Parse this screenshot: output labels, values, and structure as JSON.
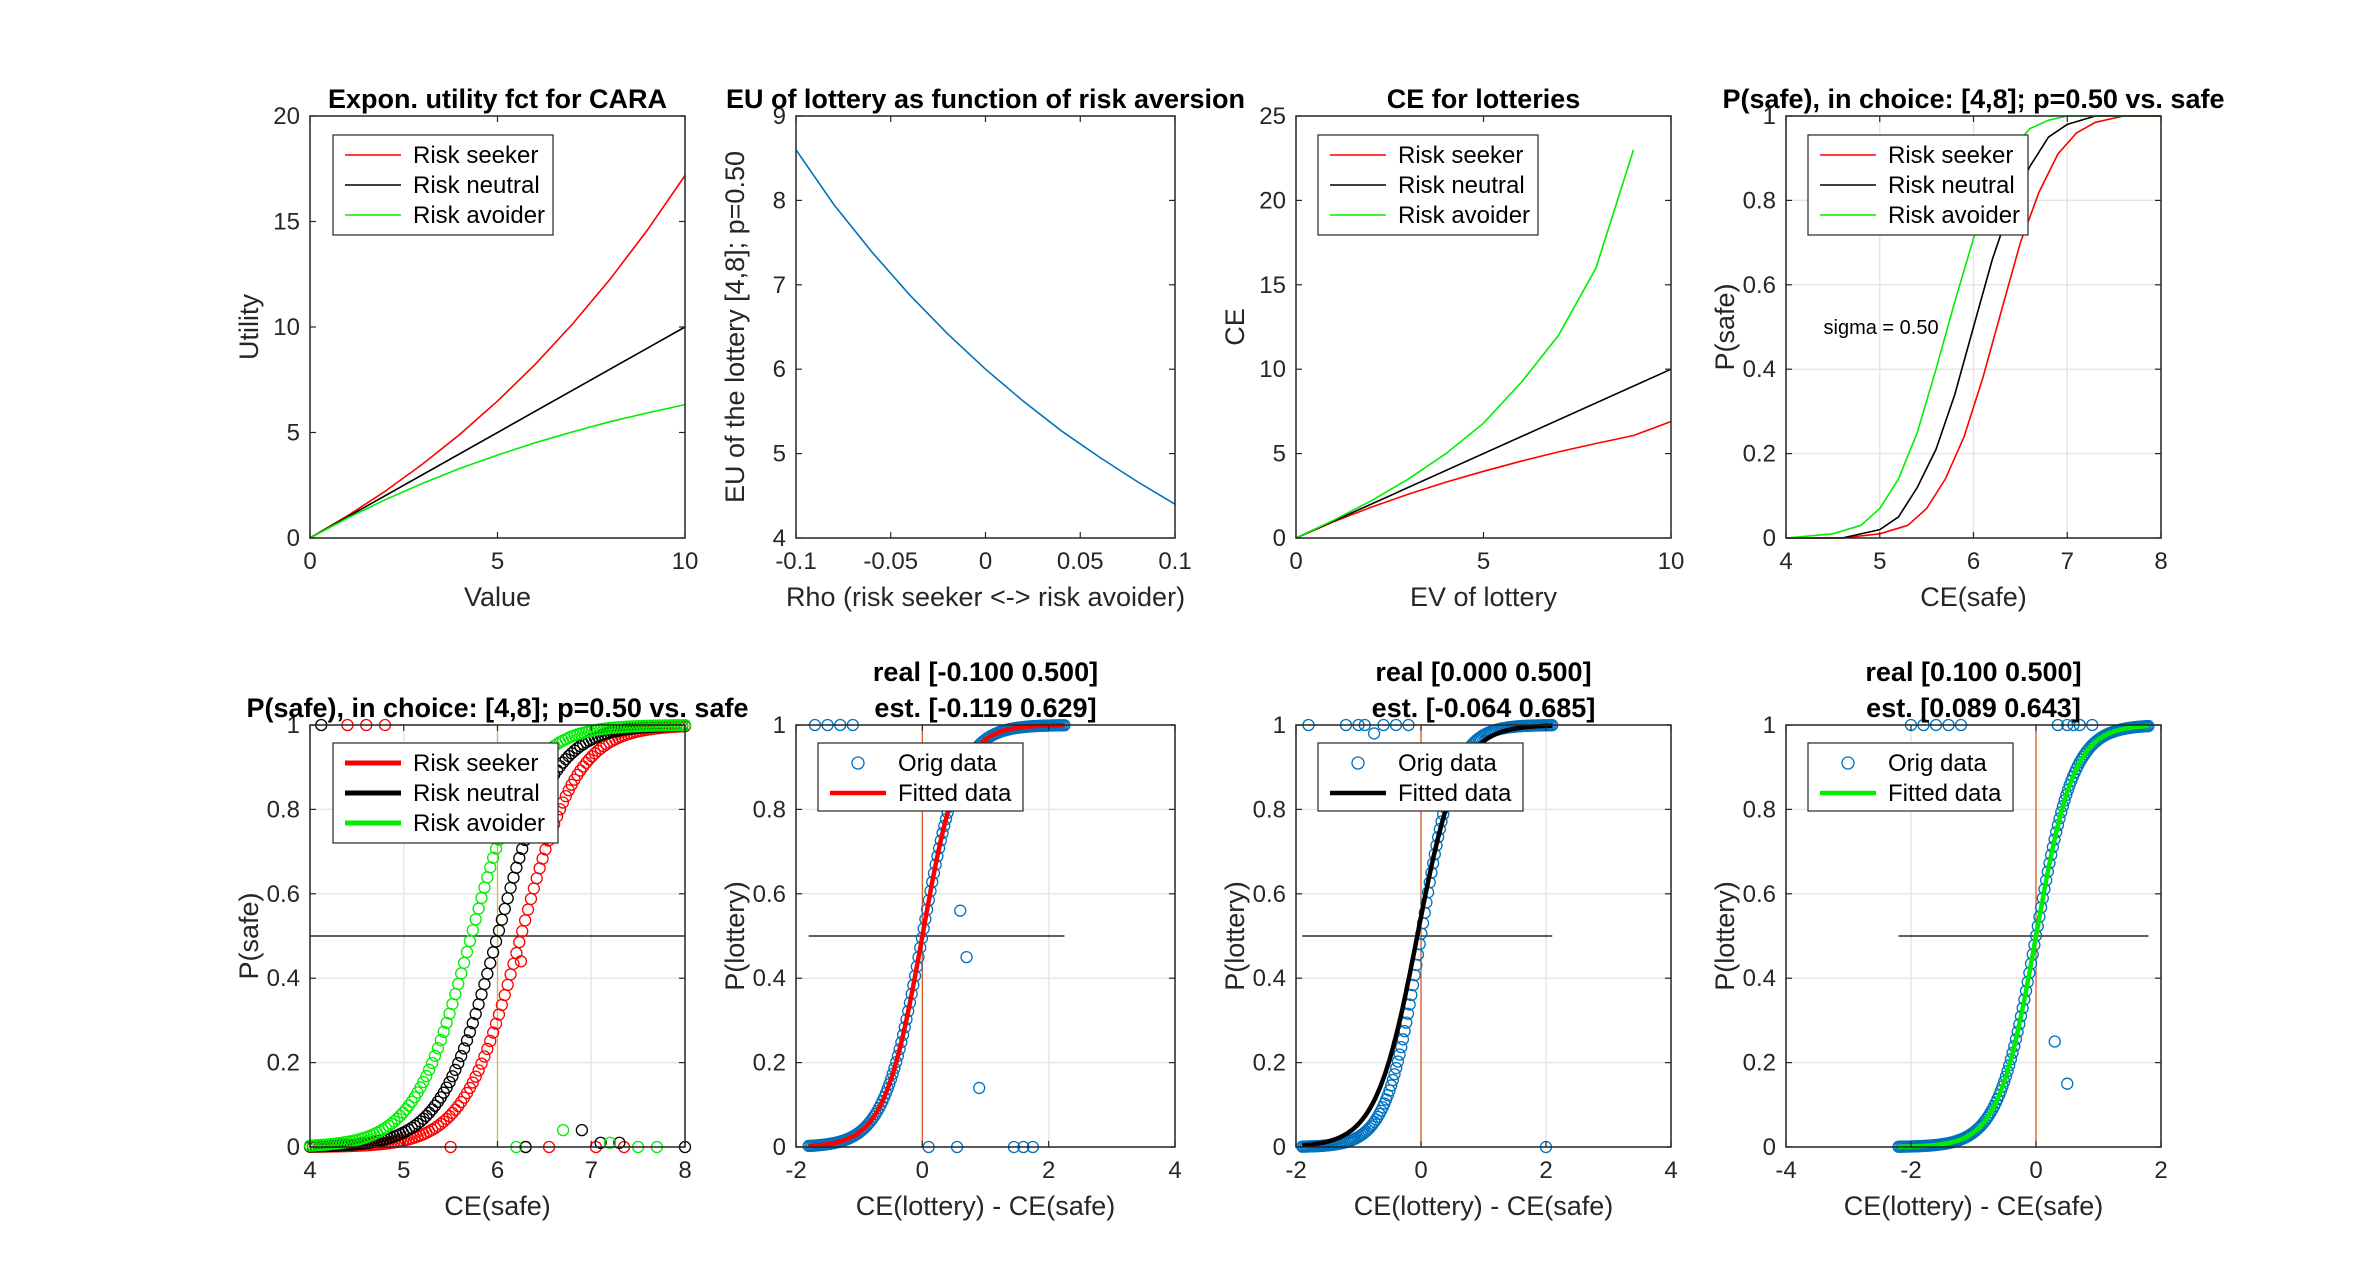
{
  "chart_data": [
    {
      "type": "line",
      "title": "Expon. utility fct for CARA",
      "xlabel": "Value",
      "ylabel": "Utility",
      "xlim": [
        0,
        10
      ],
      "ylim": [
        0,
        20
      ],
      "xticks": [
        0,
        5,
        10
      ],
      "yticks": [
        0,
        5,
        10,
        15,
        20
      ],
      "grid": false,
      "legend": "top-left",
      "series": [
        {
          "name": "Risk seeker",
          "color": "#ff0000",
          "x": [
            0,
            1,
            2,
            3,
            4,
            5,
            6,
            7,
            8,
            9,
            10
          ],
          "y": [
            0,
            1.05,
            2.21,
            3.5,
            4.92,
            6.49,
            8.22,
            10.14,
            12.26,
            14.6,
            17.18
          ]
        },
        {
          "name": "Risk neutral",
          "color": "#000000",
          "x": [
            0,
            10
          ],
          "y": [
            0,
            10
          ]
        },
        {
          "name": "Risk avoider",
          "color": "#00ee00",
          "x": [
            0,
            1,
            2,
            3,
            4,
            5,
            6,
            7,
            8,
            9,
            10
          ],
          "y": [
            0,
            0.95,
            1.81,
            2.59,
            3.3,
            3.93,
            4.51,
            5.03,
            5.51,
            5.93,
            6.32
          ]
        }
      ]
    },
    {
      "type": "line",
      "title": "EU of lottery as function of risk aversion",
      "xlabel": "Rho (risk seeker <-> risk avoider)",
      "ylabel": "EU of the lottery [4,8]; p=0.50",
      "xlim": [
        -0.1,
        0.1
      ],
      "ylim": [
        4,
        9
      ],
      "xticks": [
        -0.1,
        -0.05,
        0,
        0.05,
        0.1
      ],
      "xticklabels": [
        "-0.1",
        "-0.05",
        "0",
        "0.05",
        "0.1"
      ],
      "yticks": [
        4,
        5,
        6,
        7,
        8,
        9
      ],
      "grid": false,
      "series": [
        {
          "name": "",
          "color": "#0072bd",
          "x": [
            -0.1,
            -0.08,
            -0.06,
            -0.04,
            -0.02,
            0,
            0.02,
            0.04,
            0.06,
            0.08,
            0.1
          ],
          "y": [
            8.6,
            7.95,
            7.39,
            6.88,
            6.42,
            6.0,
            5.62,
            5.27,
            4.96,
            4.67,
            4.4
          ]
        }
      ]
    },
    {
      "type": "line",
      "title": "CE for lotteries",
      "xlabel": "EV of lottery",
      "ylabel": "CE",
      "xlim": [
        0,
        10
      ],
      "ylim": [
        0,
        25
      ],
      "xticks": [
        0,
        5,
        10
      ],
      "yticks": [
        0,
        5,
        10,
        15,
        20,
        25
      ],
      "grid": false,
      "legend": "top-left",
      "series": [
        {
          "name": "Risk seeker",
          "color": "#ff0000",
          "x": [
            0,
            1,
            2,
            3,
            4,
            5,
            6,
            7,
            8,
            9,
            10
          ],
          "y": [
            0,
            0.96,
            1.82,
            2.6,
            3.31,
            3.95,
            4.55,
            5.1,
            5.6,
            6.07,
            6.9
          ]
        },
        {
          "name": "Risk neutral",
          "color": "#000000",
          "x": [
            0,
            10
          ],
          "y": [
            0,
            10
          ]
        },
        {
          "name": "Risk avoider",
          "color": "#00ee00",
          "x": [
            0,
            1,
            2,
            3,
            4,
            5,
            6,
            7,
            8,
            9
          ],
          "y": [
            0,
            1.05,
            2.2,
            3.5,
            5.0,
            6.8,
            9.2,
            12.0,
            16.0,
            23.0
          ]
        }
      ]
    },
    {
      "type": "line",
      "title": "P(safe), in choice: [4,8]; p=0.50 vs. safe",
      "xlabel": "CE(safe)",
      "ylabel": "P(safe)",
      "xlim": [
        4,
        8
      ],
      "ylim": [
        0,
        1
      ],
      "xticks": [
        4,
        5,
        6,
        7,
        8
      ],
      "yticks": [
        0,
        0.2,
        0.4,
        0.6,
        0.8,
        1
      ],
      "yticklabels": [
        "0",
        "0.2",
        "0.4",
        "0.6",
        "0.8",
        "1"
      ],
      "grid": true,
      "legend": "top-left",
      "annotation": "sigma = 0.50",
      "series": [
        {
          "name": "Risk seeker",
          "color": "#ff0000",
          "x": [
            4.0,
            4.6,
            5.0,
            5.3,
            5.5,
            5.7,
            5.9,
            6.1,
            6.3,
            6.5,
            6.7,
            6.9,
            7.1,
            7.3,
            7.6,
            8.0
          ],
          "y": [
            0.0,
            0.0,
            0.01,
            0.03,
            0.07,
            0.14,
            0.24,
            0.38,
            0.54,
            0.7,
            0.82,
            0.91,
            0.96,
            0.985,
            1.0,
            1.0
          ]
        },
        {
          "name": "Risk neutral",
          "color": "#000000",
          "x": [
            4.0,
            4.6,
            5.0,
            5.2,
            5.4,
            5.6,
            5.8,
            6.0,
            6.2,
            6.4,
            6.6,
            6.8,
            7.0,
            7.3,
            8.0
          ],
          "y": [
            0.0,
            0.0,
            0.02,
            0.05,
            0.12,
            0.21,
            0.34,
            0.5,
            0.66,
            0.79,
            0.88,
            0.95,
            0.98,
            1.0,
            1.0
          ]
        },
        {
          "name": "Risk avoider",
          "color": "#00ee00",
          "x": [
            4.0,
            4.5,
            4.8,
            5.0,
            5.2,
            5.4,
            5.6,
            5.8,
            6.0,
            6.2,
            6.4,
            6.6,
            6.8,
            7.0,
            8.0
          ],
          "y": [
            0.0,
            0.01,
            0.03,
            0.07,
            0.14,
            0.25,
            0.4,
            0.56,
            0.71,
            0.83,
            0.92,
            0.97,
            0.99,
            1.0,
            1.0
          ]
        }
      ]
    },
    {
      "type": "scatter",
      "title": "P(safe), in choice: [4,8]; p=0.50 vs. safe",
      "xlabel": "CE(safe)",
      "ylabel": "P(safe)",
      "xlim": [
        4,
        8
      ],
      "ylim": [
        0,
        1
      ],
      "xticks": [
        4,
        5,
        6,
        7,
        8
      ],
      "yticks": [
        0,
        0.2,
        0.4,
        0.6,
        0.8,
        1
      ],
      "yticklabels": [
        "0",
        "0.2",
        "0.4",
        "0.6",
        "0.8",
        "1"
      ],
      "grid": true,
      "legend": "top-left",
      "reference_lines": {
        "hline": 0.5,
        "vline": 6
      },
      "sigmoids": [
        {
          "name": "Risk seeker",
          "color": "#ff0000",
          "mu": 6.25,
          "s": 0.3
        },
        {
          "name": "Risk neutral",
          "color": "#000000",
          "mu": 6.0,
          "s": 0.3
        },
        {
          "name": "Risk avoider",
          "color": "#00ee00",
          "mu": 5.72,
          "s": 0.3
        }
      ],
      "outliers": [
        {
          "color": "#ff0000",
          "x": [
            4.4,
            4.6,
            4.8,
            5.5,
            6.25,
            6.3,
            6.55,
            7.05,
            7.35
          ],
          "y": [
            1,
            1,
            1,
            0,
            0.44,
            0,
            0,
            0,
            0
          ]
        },
        {
          "color": "#000000",
          "x": [
            4.12,
            6.3,
            6.9,
            7.1,
            7.3,
            8.0
          ],
          "y": [
            1,
            0,
            0.04,
            0.01,
            0.01,
            0
          ]
        },
        {
          "color": "#00ee00",
          "x": [
            6.2,
            6.7,
            7.2,
            7.5,
            7.7
          ],
          "y": [
            0,
            0.04,
            0.01,
            0,
            0
          ]
        }
      ]
    },
    {
      "type": "scatter",
      "title": "real [-0.100 0.500]",
      "subtitle": "est. [-0.119 0.629]",
      "xlabel": "CE(lottery) - CE(safe)",
      "ylabel": "P(lottery)",
      "xlim": [
        -2,
        4
      ],
      "ylim": [
        0,
        1
      ],
      "xticks": [
        -2,
        0,
        2,
        4
      ],
      "yticks": [
        0,
        0.2,
        0.4,
        0.6,
        0.8,
        1
      ],
      "yticklabels": [
        "0",
        "0.2",
        "0.4",
        "0.6",
        "0.8",
        "1"
      ],
      "grid": true,
      "legend": "top-left",
      "fit_color": "#ff0000",
      "legend_entries": [
        "Orig data",
        "Fitted data"
      ],
      "orig": {
        "mu": 0,
        "s": 0.3,
        "xmin": -1.8,
        "xmax": 2.25,
        "outliers_x": [
          -1.7,
          -1.5,
          -1.3,
          -1.1,
          0.6,
          0.7,
          0.9,
          0.1,
          0.55,
          1.45,
          1.6,
          1.75
        ],
        "outliers_y": [
          1,
          1,
          1,
          1,
          0.56,
          0.45,
          0.14,
          0,
          0,
          0,
          0,
          0
        ]
      },
      "fit": {
        "mu": 0,
        "s": 0.3,
        "xmin": -1.8,
        "xmax": 2.25
      },
      "reference_lines": {
        "hline": 0.5,
        "hline_x": [
          -1.8,
          2.25
        ],
        "vline": 0
      }
    },
    {
      "type": "scatter",
      "title": "real [0.000 0.500]",
      "subtitle": "est. [-0.064 0.685]",
      "xlabel": "CE(lottery) - CE(safe)",
      "ylabel": "P(lottery)",
      "xlim": [
        -2,
        4
      ],
      "ylim": [
        0,
        1
      ],
      "xticks": [
        -2,
        0,
        2,
        4
      ],
      "yticks": [
        0,
        0.2,
        0.4,
        0.6,
        0.8,
        1
      ],
      "yticklabels": [
        "0",
        "0.2",
        "0.4",
        "0.6",
        "0.8",
        "1"
      ],
      "grid": true,
      "legend": "top-left",
      "fit_color": "#000000",
      "legend_entries": [
        "Orig data",
        "Fitted data"
      ],
      "orig": {
        "mu": 0,
        "s": 0.27,
        "xmin": -1.9,
        "xmax": 2.1,
        "outliers_x": [
          -1.8,
          -1.2,
          -1.0,
          -0.9,
          -0.75,
          -0.6,
          -0.4,
          -0.2,
          2.0
        ],
        "outliers_y": [
          1,
          1,
          1,
          1,
          0.98,
          1,
          1,
          1,
          0
        ]
      },
      "fit": {
        "mu": -0.06,
        "s": 0.33,
        "xmin": -1.9,
        "xmax": 2.1
      },
      "reference_lines": {
        "hline": 0.5,
        "hline_x": [
          -1.9,
          2.1
        ],
        "vline": 0
      }
    },
    {
      "type": "scatter",
      "title": "real [0.100 0.500]",
      "subtitle": "est. [0.089 0.643]",
      "xlabel": "CE(lottery) - CE(safe)",
      "ylabel": "P(lottery)",
      "xlim": [
        -4,
        2
      ],
      "ylim": [
        0,
        1
      ],
      "xticks": [
        -4,
        -2,
        0,
        2
      ],
      "yticks": [
        0,
        0.2,
        0.4,
        0.6,
        0.8,
        1
      ],
      "yticklabels": [
        "0",
        "0.2",
        "0.4",
        "0.6",
        "0.8",
        "1"
      ],
      "grid": true,
      "legend": "top-left",
      "fit_color": "#00ee00",
      "legend_entries": [
        "Orig data",
        "Fitted data"
      ],
      "orig": {
        "mu": 0,
        "s": 0.3,
        "xmin": -2.2,
        "xmax": 1.8,
        "outliers_x": [
          -2.0,
          -1.8,
          -1.6,
          -1.4,
          -1.2,
          0.3,
          0.5,
          0.35,
          0.5,
          0.6,
          0.7,
          0.9
        ],
        "outliers_y": [
          1,
          1,
          1,
          1,
          1,
          0.25,
          0.15,
          1,
          1,
          1,
          1,
          1
        ]
      },
      "fit": {
        "mu": 0,
        "s": 0.3,
        "xmin": -2.2,
        "xmax": 1.8
      },
      "reference_lines": {
        "hline": 0.5,
        "hline_x": [
          -2.2,
          1.8
        ],
        "vline": 0
      }
    }
  ]
}
